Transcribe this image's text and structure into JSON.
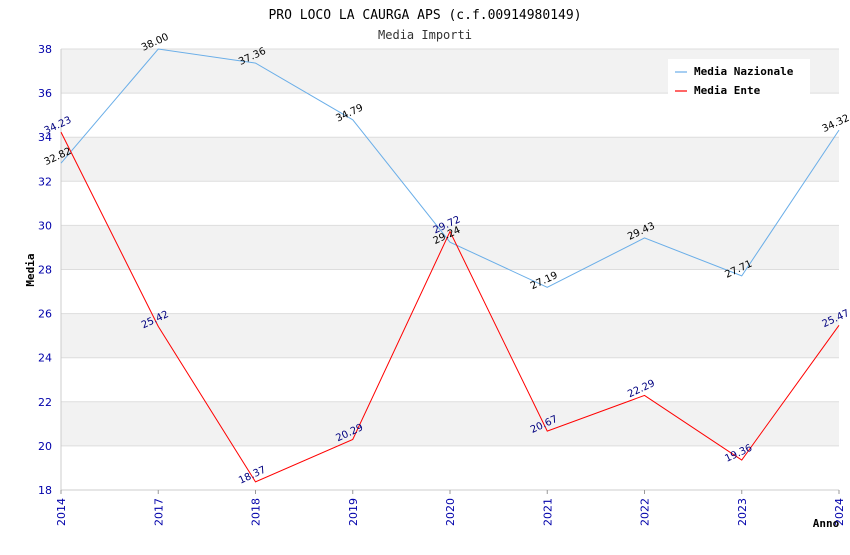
{
  "chart_data": {
    "type": "line",
    "title": "PRO LOCO LA CAURGA APS (c.f.00914980149)",
    "subtitle": "Media Importi",
    "xlabel": "Anno",
    "ylabel": "Media",
    "categories": [
      "2014",
      "2017",
      "2018",
      "2019",
      "2020",
      "2021",
      "2022",
      "2023",
      "2024"
    ],
    "ylim": [
      18,
      38
    ],
    "yticks": [
      18,
      20,
      22,
      24,
      26,
      28,
      30,
      32,
      34,
      36,
      38
    ],
    "grid": true,
    "legend_position": "top-right",
    "series": [
      {
        "name": "Media Nazionale",
        "color": "#6aaee8",
        "labelColor": "#000000",
        "values": [
          32.82,
          38.0,
          37.36,
          34.79,
          29.24,
          27.19,
          29.43,
          27.71,
          34.32
        ],
        "labels": [
          "32.82",
          "38.00",
          "37.36",
          "34.79",
          "29.24",
          "27.19",
          "29.43",
          "27.71",
          "34.32"
        ]
      },
      {
        "name": "Media Ente",
        "color": "#ff0000",
        "labelColor": "#00007f",
        "values": [
          34.23,
          25.42,
          18.37,
          20.29,
          29.72,
          20.67,
          22.29,
          19.36,
          25.47
        ],
        "labels": [
          "34.23",
          "25.42",
          "18.37",
          "20.29",
          "29.72",
          "20.67",
          "22.29",
          "19.36",
          "25.47"
        ]
      }
    ]
  }
}
